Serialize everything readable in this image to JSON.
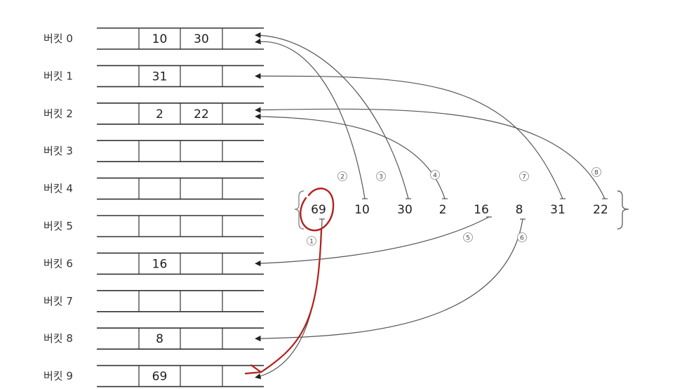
{
  "buckets": [
    {
      "label": "버킷 0",
      "values": [
        "10",
        "30",
        ""
      ]
    },
    {
      "label": "버킷 1",
      "values": [
        "31",
        "",
        ""
      ]
    },
    {
      "label": "버킷 2",
      "values": [
        "2",
        "22",
        ""
      ]
    },
    {
      "label": "버킷 3",
      "values": [
        "",
        "",
        ""
      ]
    },
    {
      "label": "버킷 4",
      "values": [
        "",
        "",
        ""
      ]
    },
    {
      "label": "버킷 5",
      "values": [
        "",
        "",
        ""
      ]
    },
    {
      "label": "버킷 6",
      "values": [
        "16",
        "",
        ""
      ]
    },
    {
      "label": "버킷 7",
      "values": [
        "",
        "",
        ""
      ]
    },
    {
      "label": "버킷 8",
      "values": [
        "8",
        "",
        ""
      ]
    },
    {
      "label": "버킷 9",
      "values": [
        "69",
        "",
        ""
      ]
    }
  ],
  "input_sequence": [
    "69",
    "10",
    "30",
    "2",
    "16",
    "8",
    "31",
    "22"
  ],
  "steps": [
    {
      "label": "①",
      "value": "69",
      "bucket": 9
    },
    {
      "label": "②",
      "value": "10",
      "bucket": 0
    },
    {
      "label": "③",
      "value": "30",
      "bucket": 0
    },
    {
      "label": "④",
      "value": "2",
      "bucket": 2
    },
    {
      "label": "⑤",
      "value": "16",
      "bucket": 6
    },
    {
      "label": "⑥",
      "value": "8",
      "bucket": 8
    },
    {
      "label": "⑦",
      "value": "31",
      "bucket": 1
    },
    {
      "label": "⑧",
      "value": "22",
      "bucket": 2
    }
  ],
  "colors": {
    "line": "#333333",
    "arrow": "#555555",
    "annotation": "#b3201c"
  }
}
